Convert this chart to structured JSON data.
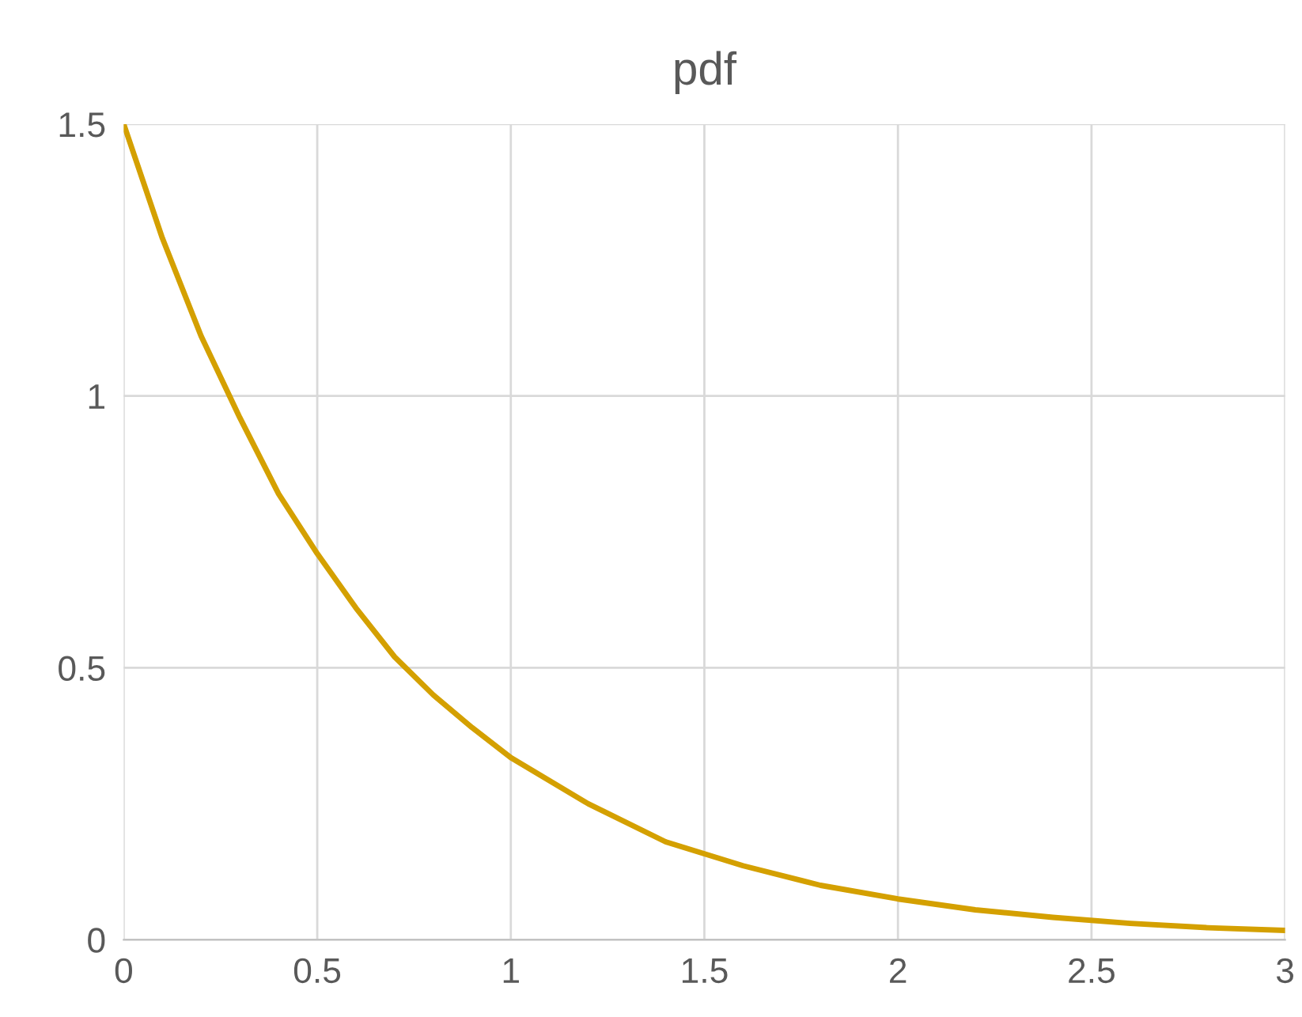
{
  "chart_data": {
    "type": "line",
    "title": "pdf",
    "x": [
      0,
      0.1,
      0.2,
      0.3,
      0.4,
      0.5,
      0.6,
      0.7,
      0.8,
      0.9,
      1,
      1.2,
      1.4,
      1.6,
      1.8,
      2,
      2.2,
      2.4,
      2.6,
      2.8,
      3
    ],
    "series": [
      {
        "color": "#d4a000",
        "values": [
          1.5,
          1.29,
          1.11,
          0.96,
          0.82,
          0.71,
          0.61,
          0.52,
          0.45,
          0.39,
          0.335,
          0.25,
          0.18,
          0.136,
          0.1,
          0.075,
          0.055,
          0.041,
          0.03,
          0.022,
          0.017
        ]
      }
    ],
    "xlim": [
      0,
      3
    ],
    "xticks": [
      0,
      0.5,
      1,
      1.5,
      2,
      2.5,
      3
    ],
    "ylim": [
      0,
      1.5
    ],
    "yticks": [
      0,
      0.5,
      1,
      1.5
    ],
    "grid": true,
    "marker": "none",
    "line_style": "solid"
  }
}
